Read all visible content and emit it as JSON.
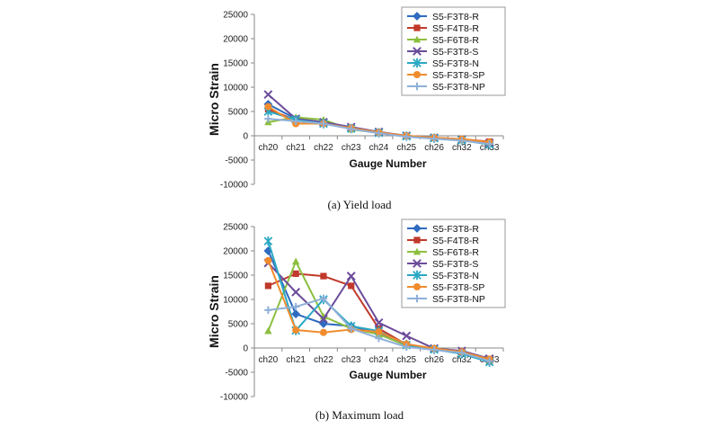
{
  "chart_data": [
    {
      "type": "line",
      "caption": "(a)  Yield  load",
      "xlabel": "Gauge Number",
      "ylabel": "Micro Strain",
      "ylim": [
        -10000,
        25000
      ],
      "yticks": [
        -10000,
        -5000,
        0,
        5000,
        10000,
        15000,
        20000,
        25000
      ],
      "categories": [
        "ch20",
        "ch21",
        "ch22",
        "ch23",
        "ch24",
        "ch25",
        "ch26",
        "ch32",
        "ch33"
      ],
      "legend_position": "top-right",
      "grid": false,
      "series": [
        {
          "name": "S5-F3T8-R",
          "color": "#2f6bc0",
          "marker": "diamond",
          "values": [
            6500,
            3500,
            2800,
            1500,
            700,
            0,
            -500,
            -800,
            -1500
          ]
        },
        {
          "name": "S5-F4T8-R",
          "color": "#c0392b",
          "marker": "square",
          "values": [
            5500,
            3200,
            2600,
            1500,
            700,
            0,
            -400,
            -700,
            -1200
          ]
        },
        {
          "name": "S5-F6T8-R",
          "color": "#8cbf3f",
          "marker": "triangle",
          "values": [
            2800,
            3800,
            3300,
            1300,
            600,
            -100,
            -500,
            -900,
            -1600
          ]
        },
        {
          "name": "S5-F3T8-S",
          "color": "#6b4c9a",
          "marker": "x",
          "values": [
            8500,
            3500,
            2800,
            1800,
            800,
            0,
            -400,
            -800,
            -1500
          ]
        },
        {
          "name": "S5-F3T8-N",
          "color": "#2aa8c4",
          "marker": "star",
          "values": [
            5000,
            3300,
            2500,
            1500,
            600,
            -100,
            -500,
            -900,
            -1800
          ]
        },
        {
          "name": "S5-F3T8-SP",
          "color": "#f08c2e",
          "marker": "circle",
          "values": [
            6000,
            2500,
            2500,
            1600,
            700,
            0,
            -400,
            -700,
            -1300
          ]
        },
        {
          "name": "S5-F3T8-NP",
          "color": "#8fb0d8",
          "marker": "plus",
          "values": [
            3500,
            3000,
            2500,
            1400,
            500,
            -200,
            -600,
            -1000,
            -1700
          ]
        }
      ]
    },
    {
      "type": "line",
      "caption": "(b)  Maximum  load",
      "xlabel": "Gauge Number",
      "ylabel": "Micro Strain",
      "ylim": [
        -10000,
        25000
      ],
      "yticks": [
        -10000,
        -5000,
        0,
        5000,
        10000,
        15000,
        20000,
        25000
      ],
      "categories": [
        "ch20",
        "ch21",
        "ch22",
        "ch23",
        "ch24",
        "ch25",
        "ch26",
        "ch32",
        "ch33"
      ],
      "legend_position": "top-right",
      "grid": false,
      "series": [
        {
          "name": "S5-F3T8-R",
          "color": "#2f6bc0",
          "marker": "diamond",
          "values": [
            20000,
            7000,
            5000,
            4500,
            3000,
            800,
            -200,
            -1000,
            -2500
          ]
        },
        {
          "name": "S5-F4T8-R",
          "color": "#c0392b",
          "marker": "square",
          "values": [
            12800,
            15300,
            14800,
            12800,
            4000,
            700,
            -200,
            -700,
            -2800
          ]
        },
        {
          "name": "S5-F6T8-R",
          "color": "#8cbf3f",
          "marker": "triangle",
          "values": [
            3500,
            17800,
            6500,
            4000,
            2800,
            500,
            -300,
            -900,
            -2600
          ]
        },
        {
          "name": "S5-F3T8-S",
          "color": "#6b4c9a",
          "marker": "x",
          "values": [
            17500,
            11500,
            6000,
            14800,
            5200,
            2500,
            -100,
            -600,
            -2200
          ]
        },
        {
          "name": "S5-F3T8-N",
          "color": "#2aa8c4",
          "marker": "star",
          "values": [
            22000,
            3600,
            10000,
            4500,
            3500,
            600,
            -300,
            -1200,
            -2900
          ]
        },
        {
          "name": "S5-F3T8-SP",
          "color": "#f08c2e",
          "marker": "circle",
          "values": [
            18000,
            3700,
            3200,
            3800,
            3300,
            800,
            -100,
            -800,
            -2300
          ]
        },
        {
          "name": "S5-F3T8-NP",
          "color": "#8fb0d8",
          "marker": "plus",
          "values": [
            7800,
            8500,
            10200,
            4000,
            2000,
            200,
            -400,
            -1000,
            -2700
          ]
        }
      ]
    }
  ]
}
